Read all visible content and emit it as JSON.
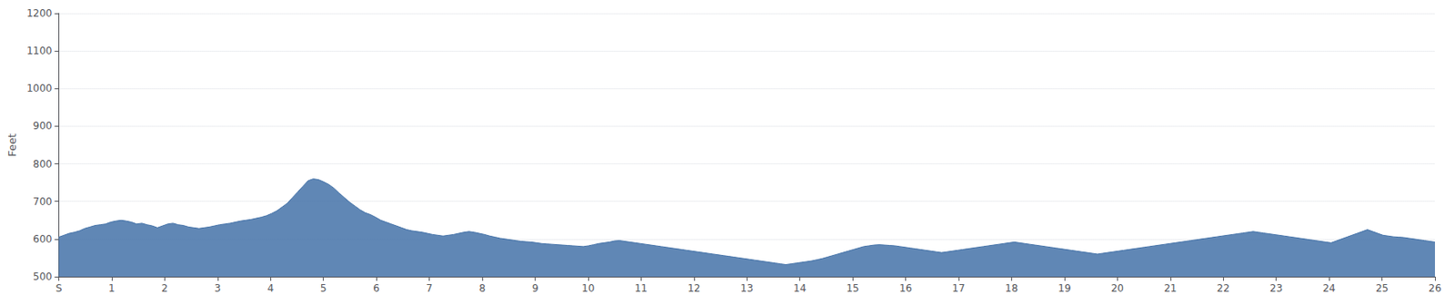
{
  "chart_data": {
    "type": "area",
    "ylabel": "Feet",
    "color": "#4472a8",
    "grid": true,
    "xlim": [
      0,
      26
    ],
    "xticks": [
      {
        "value": 0,
        "label": "S"
      },
      1,
      2,
      3,
      4,
      5,
      6,
      7,
      8,
      9,
      10,
      11,
      12,
      13,
      14,
      15,
      16,
      17,
      18,
      19,
      20,
      21,
      22,
      23,
      24,
      25,
      26
    ],
    "ylim": [
      500,
      1200
    ],
    "yticks": [
      500,
      600,
      700,
      800,
      900,
      1000,
      1100,
      1200
    ],
    "x": [
      0,
      0.0981,
      0.1962,
      0.2943,
      0.3925,
      0.4906,
      0.5887,
      0.6868,
      0.7849,
      0.883,
      0.9811,
      1.0792,
      1.1774,
      1.2755,
      1.3736,
      1.4717,
      1.5698,
      1.6679,
      1.766,
      1.8642,
      1.9623,
      2.0604,
      2.1585,
      2.2566,
      2.3547,
      2.4528,
      2.5509,
      2.6491,
      2.7472,
      2.8453,
      2.9434,
      3.0415,
      3.1396,
      3.2377,
      3.3358,
      3.434,
      3.5321,
      3.6302,
      3.7283,
      3.8264,
      3.9245,
      4.0226,
      4.1208,
      4.2189,
      4.317,
      4.4151,
      4.5132,
      4.6113,
      4.7094,
      4.8075,
      4.9057,
      5.0038,
      5.1019,
      5.2,
      5.2981,
      5.3962,
      5.4943,
      5.5925,
      5.6906,
      5.7887,
      5.8868,
      5.9849,
      6.083,
      6.1811,
      6.2792,
      6.3774,
      6.4755,
      6.5736,
      6.6717,
      6.7698,
      6.8679,
      6.966,
      7.0642,
      7.1623,
      7.2604,
      7.3585,
      7.4566,
      7.5547,
      7.6528,
      7.7509,
      7.8491,
      7.9472,
      8.0453,
      8.1434,
      8.2415,
      8.3396,
      8.4377,
      8.5358,
      8.634,
      8.7321,
      8.8302,
      8.9283,
      9.0264,
      9.1245,
      9.2226,
      9.3208,
      9.4189,
      9.517,
      9.6151,
      9.7132,
      9.8113,
      9.9094,
      10.0075,
      10.1057,
      10.2038,
      10.3019,
      10.4,
      10.4981,
      10.5962,
      10.6943,
      10.7925,
      10.8906,
      10.9887,
      11.0868,
      11.1849,
      11.283,
      11.3811,
      11.4792,
      11.5774,
      11.6755,
      11.7736,
      11.8717,
      11.9698,
      12.0679,
      12.166,
      12.2642,
      12.3623,
      12.4604,
      12.5585,
      12.6566,
      12.7547,
      12.8528,
      12.9509,
      13.0491,
      13.1472,
      13.2453,
      13.3434,
      13.4415,
      13.5396,
      13.6377,
      13.7358,
      13.834,
      13.9321,
      14.0302,
      14.1283,
      14.2264,
      14.3245,
      14.4226,
      14.5208,
      14.6189,
      14.717,
      14.8151,
      14.9132,
      15.0113,
      15.1094,
      15.2075,
      15.3057,
      15.4038,
      15.5019,
      15.6,
      15.6981,
      15.7962,
      15.8943,
      15.9925,
      16.0906,
      16.1887,
      16.2868,
      16.3849,
      16.483,
      16.5811,
      16.6792,
      16.7774,
      16.8755,
      16.9736,
      17.0717,
      17.1698,
      17.2679,
      17.366,
      17.4642,
      17.5623,
      17.6604,
      17.7585,
      17.8566,
      17.9547,
      18.0528,
      18.1509,
      18.2491,
      18.3472,
      18.4453,
      18.5434,
      18.6415,
      18.7396,
      18.8377,
      18.9358,
      19.034,
      19.1321,
      19.2302,
      19.3283,
      19.4264,
      19.5245,
      19.6226,
      19.7208,
      19.8189,
      19.917,
      20.0151,
      20.1132,
      20.2113,
      20.3094,
      20.4075,
      20.5057,
      20.6038,
      20.7019,
      20.8,
      20.8981,
      20.9962,
      21.0943,
      21.1925,
      21.2906,
      21.3887,
      21.4868,
      21.5849,
      21.683,
      21.7811,
      21.8792,
      21.9774,
      22.0755,
      22.1736,
      22.2717,
      22.3698,
      22.4679,
      22.566,
      22.6642,
      22.7623,
      22.8604,
      22.9585,
      23.0566,
      23.1547,
      23.2528,
      23.3509,
      23.4491,
      23.5472,
      23.6453,
      23.7434,
      23.8415,
      23.9396,
      24.0377,
      24.1358,
      24.234,
      24.3321,
      24.4302,
      24.5283,
      24.6264,
      24.7245,
      24.8226,
      24.9208,
      25.0189,
      25.117,
      25.2151,
      25.3132,
      25.4113,
      25.5094,
      25.6075,
      25.7057,
      25.8038,
      25.9019,
      26
    ],
    "values": [
      605,
      610,
      615,
      618,
      622,
      628,
      632,
      636,
      638,
      640,
      645,
      648,
      650,
      648,
      645,
      640,
      642,
      638,
      635,
      630,
      635,
      640,
      642,
      638,
      636,
      632,
      630,
      628,
      630,
      632,
      635,
      638,
      640,
      642,
      645,
      648,
      650,
      652,
      655,
      658,
      662,
      668,
      675,
      685,
      695,
      710,
      725,
      740,
      755,
      760,
      758,
      752,
      745,
      735,
      722,
      710,
      698,
      688,
      678,
      670,
      665,
      658,
      650,
      645,
      640,
      635,
      630,
      625,
      622,
      620,
      618,
      615,
      612,
      610,
      608,
      610,
      612,
      615,
      618,
      620,
      618,
      615,
      612,
      608,
      605,
      602,
      600,
      598,
      596,
      594,
      593,
      592,
      590,
      588,
      587,
      586,
      585,
      584,
      583,
      582,
      581,
      580,
      582,
      585,
      588,
      590,
      592,
      595,
      596,
      594,
      592,
      590,
      588,
      586,
      584,
      582,
      580,
      578,
      576,
      574,
      572,
      570,
      568,
      566,
      564,
      562,
      560,
      558,
      556,
      554,
      552,
      550,
      548,
      546,
      544,
      542,
      540,
      538,
      536,
      534,
      532,
      534,
      536,
      538,
      540,
      542,
      545,
      548,
      552,
      556,
      560,
      564,
      568,
      572,
      576,
      580,
      582,
      584,
      585,
      584,
      583,
      582,
      580,
      578,
      576,
      574,
      572,
      570,
      568,
      566,
      564,
      566,
      568,
      570,
      572,
      574,
      576,
      578,
      580,
      582,
      584,
      586,
      588,
      590,
      592,
      590,
      588,
      586,
      584,
      582,
      580,
      578,
      576,
      574,
      572,
      570,
      568,
      566,
      564,
      562,
      560,
      562,
      564,
      566,
      568,
      570,
      572,
      574,
      576,
      578,
      580,
      582,
      584,
      586,
      588,
      590,
      592,
      594,
      596,
      598,
      600,
      602,
      604,
      606,
      608,
      610,
      612,
      614,
      616,
      618,
      620,
      618,
      616,
      614,
      612,
      610,
      608,
      606,
      604,
      602,
      600,
      598,
      596,
      594,
      592,
      590,
      595,
      600,
      605,
      610,
      615,
      620,
      625,
      620,
      615,
      610,
      608,
      606,
      605,
      604,
      602,
      600,
      598,
      596,
      594,
      592
    ]
  }
}
